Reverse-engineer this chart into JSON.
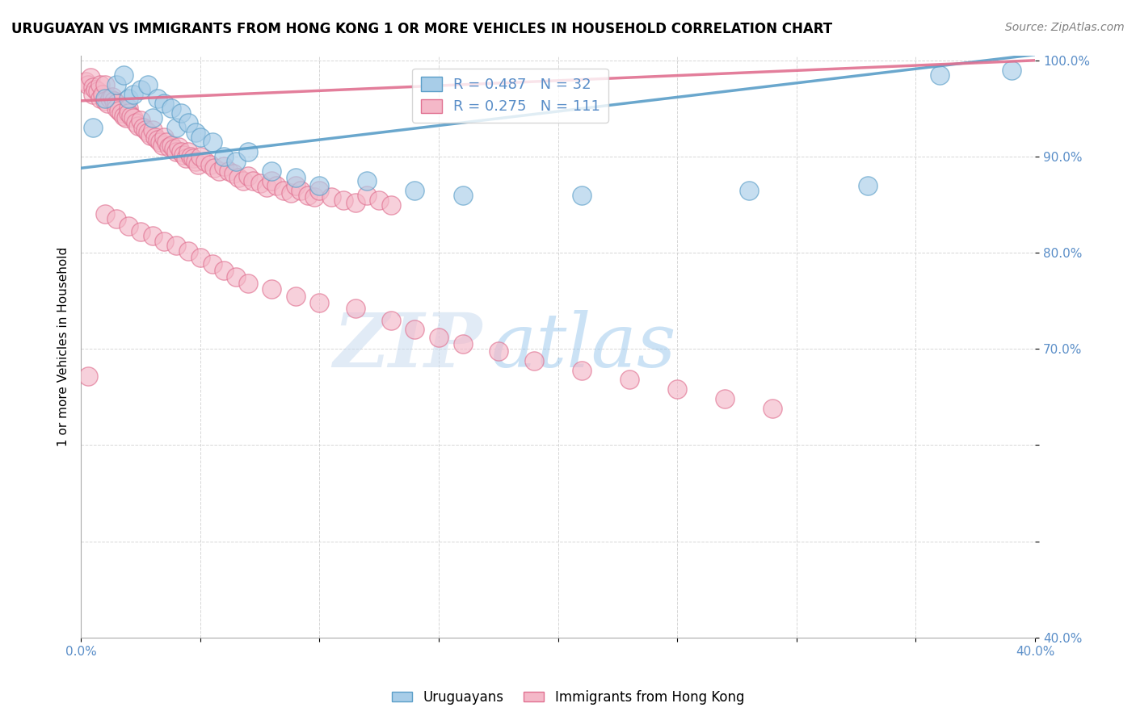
{
  "title": "URUGUAYAN VS IMMIGRANTS FROM HONG KONG 1 OR MORE VEHICLES IN HOUSEHOLD CORRELATION CHART",
  "source": "Source: ZipAtlas.com",
  "ylabel": "1 or more Vehicles in Household",
  "xlim": [
    0.0,
    0.4
  ],
  "ylim": [
    0.4,
    1.005
  ],
  "xticks": [
    0.0,
    0.05,
    0.1,
    0.15,
    0.2,
    0.25,
    0.3,
    0.35,
    0.4
  ],
  "xticklabels": [
    "0.0%",
    "",
    "",
    "",
    "",
    "",
    "",
    "",
    "40.0%"
  ],
  "yticks": [
    0.4,
    0.5,
    0.6,
    0.7,
    0.8,
    0.9,
    1.0
  ],
  "yticklabels": [
    "40.0%",
    "",
    "",
    "70.0%",
    "80.0%",
    "90.0%",
    "100.0%"
  ],
  "legend_blue_label": "Uruguayans",
  "legend_pink_label": "Immigrants from Hong Kong",
  "r_blue": 0.487,
  "n_blue": 32,
  "r_pink": 0.275,
  "n_pink": 111,
  "blue_color": "#A8CDE8",
  "pink_color": "#F4B8C8",
  "blue_edge_color": "#5A9EC8",
  "pink_edge_color": "#E07090",
  "blue_line_color": "#5A9EC8",
  "pink_line_color": "#E07090",
  "watermark_zip": "ZIP",
  "watermark_atlas": "atlas",
  "blue_scatter_x": [
    0.005,
    0.01,
    0.015,
    0.018,
    0.02,
    0.022,
    0.025,
    0.028,
    0.03,
    0.032,
    0.035,
    0.038,
    0.04,
    0.042,
    0.045,
    0.048,
    0.05,
    0.055,
    0.06,
    0.065,
    0.07,
    0.08,
    0.09,
    0.1,
    0.12,
    0.14,
    0.16,
    0.21,
    0.28,
    0.33,
    0.36,
    0.39
  ],
  "blue_scatter_y": [
    0.93,
    0.96,
    0.975,
    0.985,
    0.96,
    0.965,
    0.97,
    0.975,
    0.94,
    0.96,
    0.955,
    0.95,
    0.93,
    0.945,
    0.935,
    0.925,
    0.92,
    0.915,
    0.9,
    0.895,
    0.905,
    0.885,
    0.878,
    0.87,
    0.875,
    0.865,
    0.86,
    0.86,
    0.865,
    0.87,
    0.985,
    0.99
  ],
  "pink_scatter_x": [
    0.002,
    0.003,
    0.004,
    0.005,
    0.005,
    0.006,
    0.007,
    0.008,
    0.008,
    0.009,
    0.01,
    0.01,
    0.011,
    0.012,
    0.013,
    0.014,
    0.015,
    0.015,
    0.016,
    0.017,
    0.018,
    0.019,
    0.02,
    0.02,
    0.021,
    0.022,
    0.023,
    0.024,
    0.025,
    0.026,
    0.027,
    0.028,
    0.029,
    0.03,
    0.031,
    0.032,
    0.033,
    0.034,
    0.035,
    0.036,
    0.037,
    0.038,
    0.039,
    0.04,
    0.041,
    0.042,
    0.043,
    0.044,
    0.045,
    0.046,
    0.047,
    0.048,
    0.049,
    0.05,
    0.052,
    0.054,
    0.056,
    0.058,
    0.06,
    0.062,
    0.064,
    0.066,
    0.068,
    0.07,
    0.072,
    0.075,
    0.078,
    0.08,
    0.082,
    0.085,
    0.088,
    0.09,
    0.092,
    0.095,
    0.098,
    0.1,
    0.105,
    0.11,
    0.115,
    0.12,
    0.125,
    0.13,
    0.01,
    0.015,
    0.02,
    0.025,
    0.03,
    0.035,
    0.04,
    0.045,
    0.05,
    0.055,
    0.06,
    0.065,
    0.07,
    0.08,
    0.09,
    0.1,
    0.115,
    0.13,
    0.14,
    0.15,
    0.16,
    0.175,
    0.19,
    0.21,
    0.23,
    0.25,
    0.27,
    0.29,
    0.003
  ],
  "pink_scatter_y": [
    0.978,
    0.975,
    0.982,
    0.972,
    0.965,
    0.97,
    0.968,
    0.975,
    0.96,
    0.965,
    0.975,
    0.958,
    0.955,
    0.96,
    0.962,
    0.958,
    0.955,
    0.95,
    0.948,
    0.945,
    0.942,
    0.94,
    0.95,
    0.945,
    0.942,
    0.94,
    0.935,
    0.932,
    0.938,
    0.93,
    0.928,
    0.925,
    0.922,
    0.928,
    0.92,
    0.918,
    0.915,
    0.912,
    0.92,
    0.915,
    0.91,
    0.912,
    0.908,
    0.905,
    0.91,
    0.905,
    0.902,
    0.898,
    0.905,
    0.9,
    0.898,
    0.895,
    0.892,
    0.9,
    0.895,
    0.892,
    0.888,
    0.885,
    0.89,
    0.885,
    0.882,
    0.878,
    0.875,
    0.88,
    0.875,
    0.872,
    0.868,
    0.875,
    0.87,
    0.865,
    0.862,
    0.87,
    0.865,
    0.86,
    0.858,
    0.865,
    0.858,
    0.855,
    0.852,
    0.86,
    0.855,
    0.85,
    0.84,
    0.835,
    0.828,
    0.822,
    0.818,
    0.812,
    0.808,
    0.802,
    0.795,
    0.788,
    0.782,
    0.775,
    0.768,
    0.762,
    0.755,
    0.748,
    0.742,
    0.73,
    0.72,
    0.712,
    0.705,
    0.698,
    0.688,
    0.678,
    0.668,
    0.658,
    0.648,
    0.638,
    0.672
  ]
}
